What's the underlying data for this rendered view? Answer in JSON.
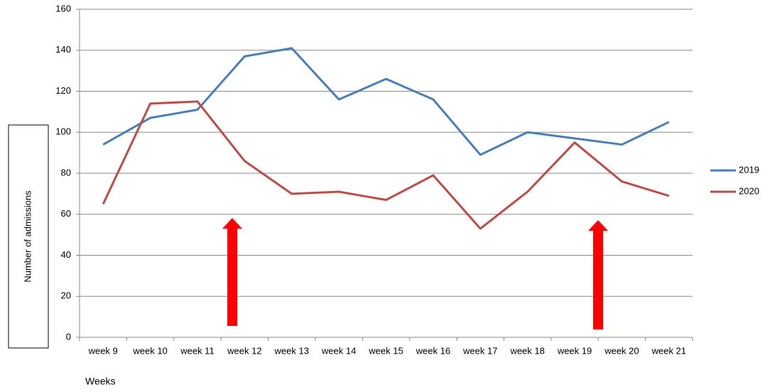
{
  "chart_data": {
    "type": "line",
    "x_label": "Weeks",
    "y_label": "Number of admissions",
    "categories": [
      "week 9",
      "week 10",
      "week 11",
      "week 12",
      "week 13",
      "week 14",
      "week 15",
      "week 16",
      "week 17",
      "week 18",
      "week 19",
      "week 20",
      "week 21"
    ],
    "series": [
      {
        "name": "2019",
        "color": "#4a7ebb",
        "values": [
          94,
          107,
          111,
          137,
          141,
          116,
          126,
          116,
          89,
          100,
          97,
          94,
          105
        ]
      },
      {
        "name": "2020",
        "color": "#be4b48",
        "values": [
          65,
          114,
          115,
          86,
          70,
          71,
          67,
          79,
          53,
          71,
          95,
          76,
          69
        ]
      }
    ],
    "ylim": [
      0,
      160
    ],
    "yticks": [
      0,
      20,
      40,
      60,
      80,
      100,
      120,
      140,
      160
    ],
    "grid": true,
    "legend": "right"
  }
}
